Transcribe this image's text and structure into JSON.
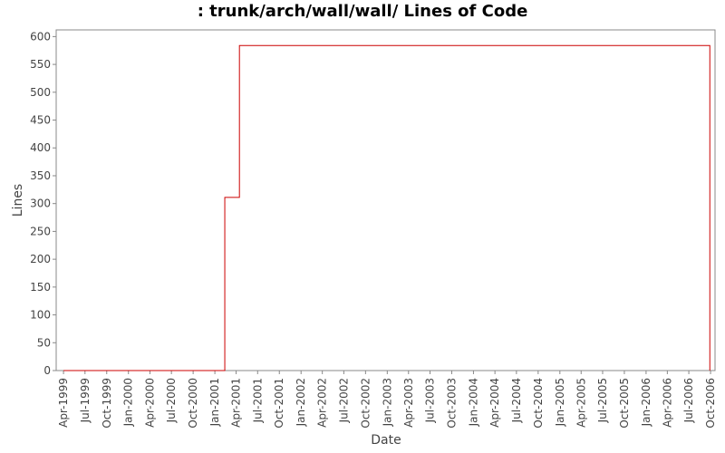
{
  "chart_data": {
    "type": "line",
    "title": ": trunk/arch/wall/wall/ Lines of Code",
    "xlabel": "Date",
    "ylabel": "Lines",
    "line_style": "step",
    "ylim": [
      0,
      612
    ],
    "xlim": [
      "1999-03-01",
      "2006-10-20"
    ],
    "y_ticks": [
      0,
      50,
      100,
      150,
      200,
      250,
      300,
      350,
      400,
      450,
      500,
      550,
      600
    ],
    "x_ticks": [
      {
        "date": "1999-04-01",
        "label": "Apr-1999"
      },
      {
        "date": "1999-07-01",
        "label": "Jul-1999"
      },
      {
        "date": "1999-10-01",
        "label": "Oct-1999"
      },
      {
        "date": "2000-01-01",
        "label": "Jan-2000"
      },
      {
        "date": "2000-04-01",
        "label": "Apr-2000"
      },
      {
        "date": "2000-07-01",
        "label": "Jul-2000"
      },
      {
        "date": "2000-10-01",
        "label": "Oct-2000"
      },
      {
        "date": "2001-01-01",
        "label": "Jan-2001"
      },
      {
        "date": "2001-04-01",
        "label": "Apr-2001"
      },
      {
        "date": "2001-07-01",
        "label": "Jul-2001"
      },
      {
        "date": "2001-10-01",
        "label": "Oct-2001"
      },
      {
        "date": "2002-01-01",
        "label": "Jan-2002"
      },
      {
        "date": "2002-04-01",
        "label": "Apr-2002"
      },
      {
        "date": "2002-07-01",
        "label": "Jul-2002"
      },
      {
        "date": "2002-10-01",
        "label": "Oct-2002"
      },
      {
        "date": "2003-01-01",
        "label": "Jan-2003"
      },
      {
        "date": "2003-04-01",
        "label": "Apr-2003"
      },
      {
        "date": "2003-07-01",
        "label": "Jul-2003"
      },
      {
        "date": "2003-10-01",
        "label": "Oct-2003"
      },
      {
        "date": "2004-01-01",
        "label": "Jan-2004"
      },
      {
        "date": "2004-04-01",
        "label": "Apr-2004"
      },
      {
        "date": "2004-07-01",
        "label": "Jul-2004"
      },
      {
        "date": "2004-10-01",
        "label": "Oct-2004"
      },
      {
        "date": "2005-01-01",
        "label": "Jan-2005"
      },
      {
        "date": "2005-04-01",
        "label": "Apr-2005"
      },
      {
        "date": "2005-07-01",
        "label": "Jul-2005"
      },
      {
        "date": "2005-10-01",
        "label": "Oct-2005"
      },
      {
        "date": "2006-01-01",
        "label": "Jan-2006"
      },
      {
        "date": "2006-04-01",
        "label": "Apr-2006"
      },
      {
        "date": "2006-07-01",
        "label": "Jul-2006"
      },
      {
        "date": "2006-10-01",
        "label": "Oct-2006"
      }
    ],
    "series": [
      {
        "color": "#cc0000",
        "points": [
          {
            "x": "1999-04-01",
            "y": 0
          },
          {
            "x": "2001-02-12",
            "y": 311
          },
          {
            "x": "2001-04-15",
            "y": 584
          },
          {
            "x": "2006-09-28",
            "y": 0
          }
        ]
      }
    ],
    "grid": false,
    "colors": {
      "line": "#cc0000",
      "axis": "#888888",
      "background": "#ffffff"
    }
  }
}
